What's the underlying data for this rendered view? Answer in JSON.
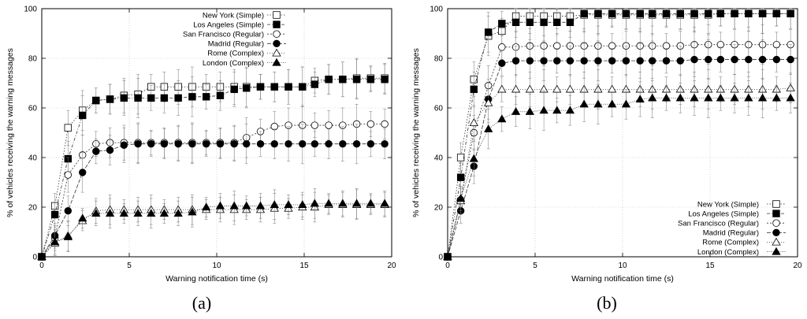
{
  "chart_data": [
    {
      "type": "line",
      "panel_label": "(a)",
      "xlabel": "Warning notification time (s)",
      "ylabel": "% of vehicles receiving the warning messages",
      "xlim": [
        0,
        20
      ],
      "ylim": [
        0,
        100
      ],
      "xticks": [
        "0",
        "5",
        "10",
        "15",
        "20"
      ],
      "yticks": [
        "0",
        "20",
        "40",
        "60",
        "80",
        "100"
      ],
      "grid": true,
      "legend_position": "top-center",
      "x": [
        0,
        0.75,
        1.5,
        2.33,
        3.1,
        3.9,
        4.7,
        5.5,
        6.25,
        7.0,
        7.8,
        8.6,
        9.4,
        10.2,
        11.0,
        11.7,
        12.5,
        13.3,
        14.1,
        14.9,
        15.6,
        16.4,
        17.2,
        18.0,
        18.8,
        19.6
      ],
      "series": [
        {
          "name": "New York (Simple)",
          "marker": "square-open",
          "values": [
            0,
            20.5,
            52,
            59,
            63,
            63.5,
            65,
            65.5,
            68.5,
            68.5,
            68.5,
            68.5,
            68.5,
            68.5,
            68.5,
            68.5,
            68.5,
            68.5,
            68.5,
            68.5,
            71,
            71.5,
            71.5,
            72,
            72,
            72
          ]
        },
        {
          "name": "Los Angeles (Simple)",
          "marker": "square-filled",
          "values": [
            0,
            17,
            39.5,
            57,
            63,
            63.5,
            64,
            64,
            64,
            64,
            64,
            64.5,
            64.5,
            65,
            67.5,
            68,
            68.5,
            68.5,
            68.5,
            68.5,
            69.5,
            71.5,
            71.5,
            71.5,
            71.5,
            71.5
          ]
        },
        {
          "name": "San Francisco (Regular)",
          "marker": "circle-open",
          "values": [
            0,
            7.5,
            33,
            41,
            45.5,
            46,
            46,
            46,
            46,
            46,
            46,
            46,
            46,
            46,
            46,
            48,
            50.5,
            52.5,
            53,
            53,
            53,
            53,
            53,
            53.5,
            53.5,
            53.5
          ]
        },
        {
          "name": "Madrid (Regular)",
          "marker": "circle-filled",
          "values": [
            0,
            8.5,
            18.5,
            34,
            42.5,
            43,
            45,
            45.5,
            45.5,
            45.5,
            45.5,
            45.5,
            45.5,
            45.5,
            45.5,
            45.5,
            45.5,
            45.5,
            45.5,
            45.5,
            45.5,
            45.5,
            45.5,
            45.5,
            45.5,
            45.5
          ]
        },
        {
          "name": "Rome (Complex)",
          "marker": "triangle-open",
          "values": [
            0,
            5.5,
            8.5,
            14.5,
            18.5,
            19,
            19,
            19,
            19,
            19,
            19,
            19,
            19,
            19,
            19,
            19,
            19,
            19.5,
            19.5,
            20,
            20,
            21,
            21,
            21,
            21,
            21
          ]
        },
        {
          "name": "London (Complex)",
          "marker": "triangle-filled",
          "values": [
            0,
            6,
            8,
            15.5,
            17.5,
            17.5,
            17.5,
            17.5,
            17.5,
            17.5,
            17.5,
            18,
            20,
            20.5,
            20.5,
            20.5,
            20.5,
            21,
            21,
            21,
            21.5,
            21.5,
            21.5,
            21.5,
            21.5,
            21.5
          ]
        }
      ]
    },
    {
      "type": "line",
      "panel_label": "(b)",
      "xlabel": "Warning notification time (s)",
      "ylabel": "% of vehicles receiving the warning messages",
      "xlim": [
        0,
        20
      ],
      "ylim": [
        0,
        100
      ],
      "xticks": [
        "0",
        "5",
        "10",
        "15",
        "20"
      ],
      "yticks": [
        "0",
        "20",
        "40",
        "60",
        "80",
        "100"
      ],
      "grid": true,
      "legend_position": "bottom-right",
      "x": [
        0,
        0.75,
        1.5,
        2.33,
        3.1,
        3.9,
        4.7,
        5.5,
        6.25,
        7.0,
        7.8,
        8.6,
        9.4,
        10.2,
        11.0,
        11.7,
        12.5,
        13.3,
        14.1,
        14.9,
        15.6,
        16.4,
        17.2,
        18.0,
        18.8,
        19.6
      ],
      "series": [
        {
          "name": "New York (Simple)",
          "marker": "square-open",
          "values": [
            0,
            40,
            71.5,
            89,
            91,
            97,
            97,
            97,
            97,
            97,
            97.5,
            97.5,
            97.5,
            97.5,
            97.5,
            97.5,
            97.5,
            97.5,
            97.5,
            97.5,
            98,
            98,
            98,
            98,
            98,
            98
          ]
        },
        {
          "name": "Los Angeles (Simple)",
          "marker": "square-filled",
          "values": [
            0,
            32,
            67.5,
            90.5,
            94,
            94.5,
            94.5,
            94.5,
            94.5,
            94.5,
            98,
            98,
            98,
            98,
            98,
            98,
            98,
            98,
            98,
            98,
            98,
            98,
            98,
            98,
            98,
            98
          ]
        },
        {
          "name": "San Francisco (Regular)",
          "marker": "circle-open",
          "values": [
            0,
            23,
            50,
            69,
            84.5,
            84.5,
            85,
            85,
            85,
            85,
            85,
            85,
            85,
            85,
            85,
            85,
            85,
            85,
            85.5,
            85.5,
            85.5,
            85.5,
            85.5,
            85.5,
            85.5,
            85.5
          ]
        },
        {
          "name": "Madrid (Regular)",
          "marker": "circle-filled",
          "values": [
            0,
            18.5,
            36.5,
            63.5,
            78,
            79,
            79,
            79,
            79,
            79,
            79,
            79,
            79,
            79,
            79,
            79,
            79,
            79,
            79.5,
            79.5,
            79.5,
            79.5,
            79.5,
            79.5,
            79.5,
            79.5
          ]
        },
        {
          "name": "Rome (Complex)",
          "marker": "triangle-open",
          "values": [
            0,
            22.5,
            54,
            62,
            67.5,
            67.5,
            67.5,
            67.5,
            67.5,
            67.5,
            67.5,
            67.5,
            67.5,
            67.5,
            67.5,
            67.5,
            67.5,
            67.5,
            67.5,
            67.5,
            67.5,
            67.5,
            67.5,
            67.5,
            67.5,
            68
          ]
        },
        {
          "name": "London (Complex)",
          "marker": "triangle-filled",
          "values": [
            0,
            23.5,
            39.5,
            51.5,
            55.5,
            58.5,
            58.5,
            59,
            59,
            59,
            61.5,
            61.5,
            61.5,
            61.5,
            63.5,
            64,
            64,
            64,
            64,
            64,
            64,
            64,
            64,
            64,
            64,
            64
          ]
        }
      ]
    }
  ]
}
